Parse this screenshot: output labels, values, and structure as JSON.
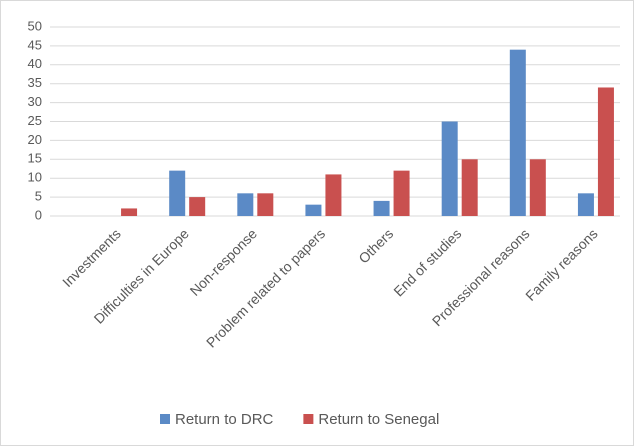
{
  "chart_data": {
    "type": "bar",
    "categories": [
      "Investments",
      "Difficulties in Europe",
      "Non-response",
      "Problem related to papers",
      "Others",
      "End of studies",
      "Professional reasons",
      "Family reasons"
    ],
    "series": [
      {
        "name": "Return to DRC",
        "color": "#5b8ac6",
        "values": [
          0,
          12,
          6,
          3,
          4,
          25,
          44,
          6
        ]
      },
      {
        "name": "Return to Senegal",
        "color": "#c9504f",
        "values": [
          2,
          5,
          6,
          11,
          12,
          15,
          15,
          34
        ]
      }
    ],
    "ylim": [
      0,
      50
    ],
    "yticks": [
      0,
      5,
      10,
      15,
      20,
      25,
      30,
      35,
      40,
      45,
      50
    ],
    "grid": true,
    "legend": "bottom"
  }
}
